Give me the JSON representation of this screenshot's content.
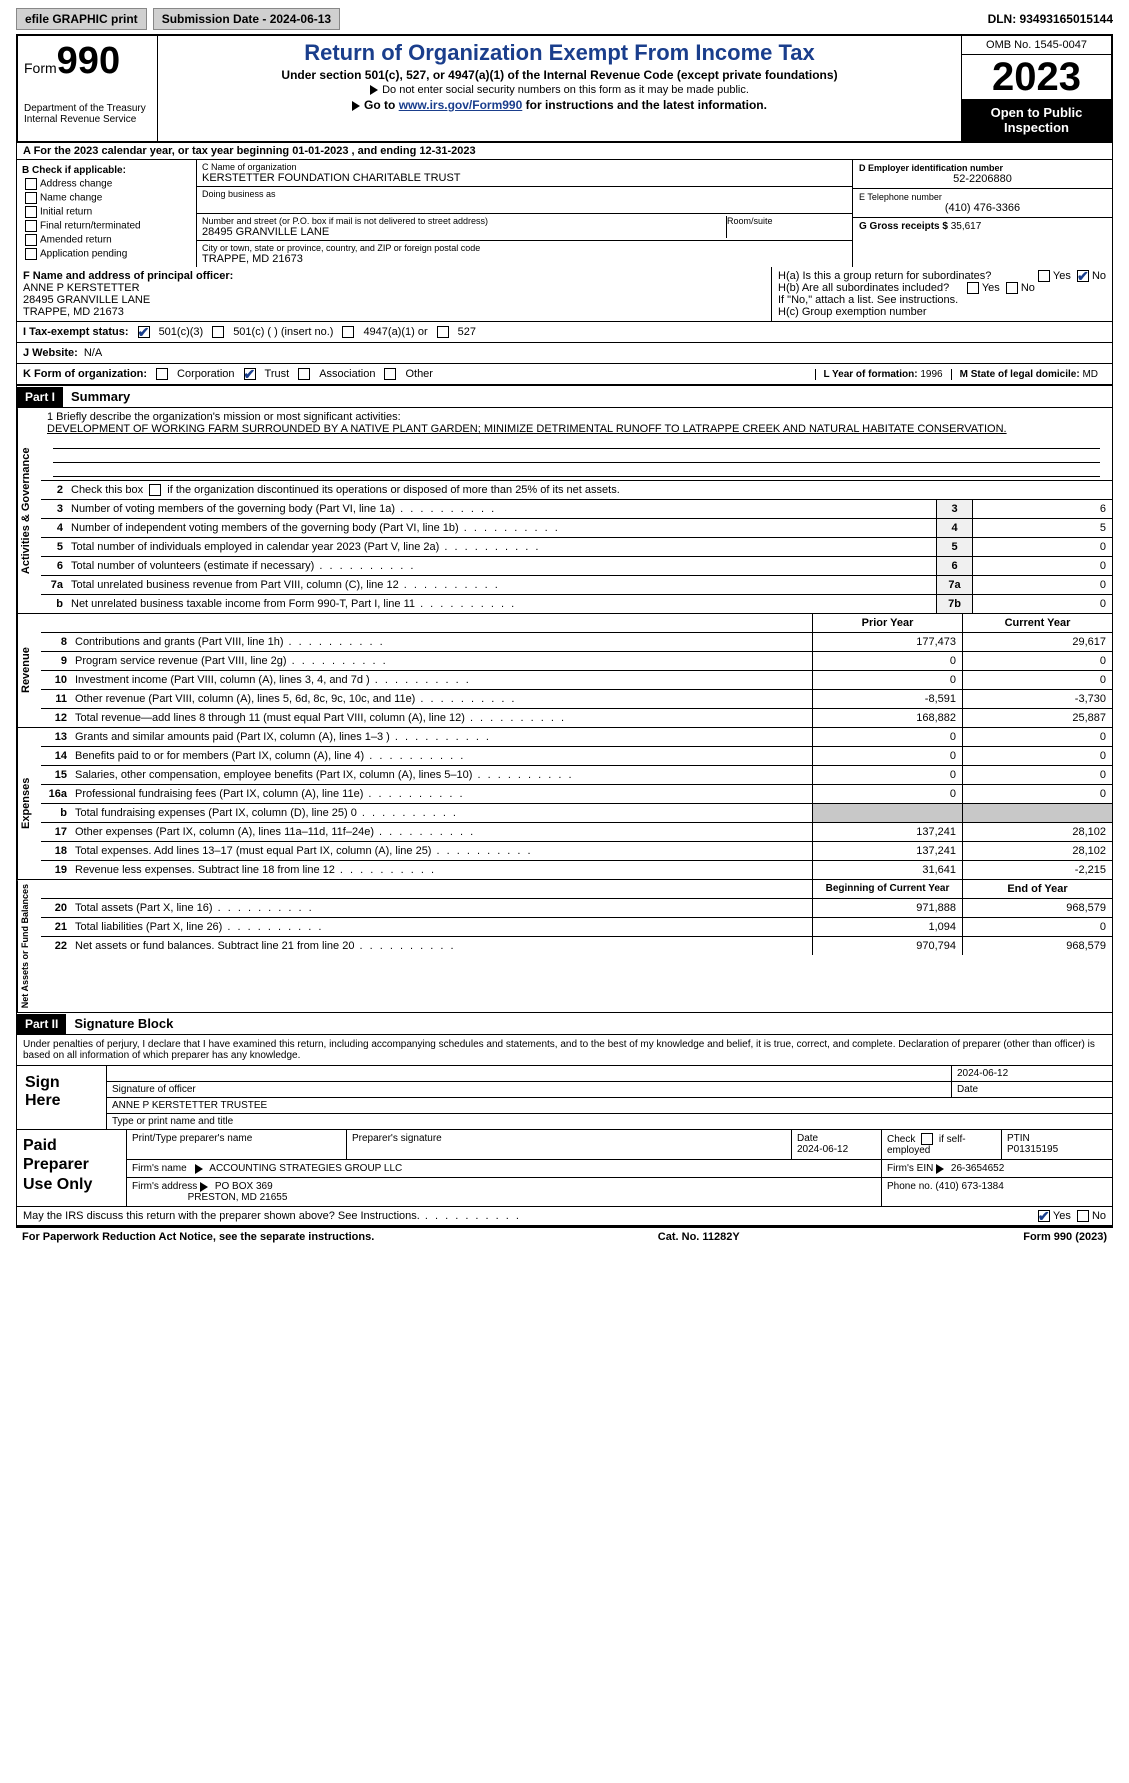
{
  "topbar": {
    "efile": "efile GRAPHIC print",
    "submission": "Submission Date - 2024-06-13",
    "dln": "DLN: 93493165015144"
  },
  "header": {
    "form_label": "Form",
    "form_num": "990",
    "title": "Return of Organization Exempt From Income Tax",
    "sub1": "Under section 501(c), 527, or 4947(a)(1) of the Internal Revenue Code (except private foundations)",
    "sub2": "Do not enter social security numbers on this form as it may be made public.",
    "sub3_pre": "Go to ",
    "sub3_link": "www.irs.gov/Form990",
    "sub3_post": " for instructions and the latest information.",
    "dept": "Department of the Treasury\nInternal Revenue Service",
    "omb": "OMB No. 1545-0047",
    "year": "2023",
    "openpub": "Open to Public Inspection"
  },
  "row_a": "A For the 2023 calendar year, or tax year beginning 01-01-2023    , and ending 12-31-2023",
  "col_b": {
    "label": "B Check if applicable:",
    "items": [
      "Address change",
      "Name change",
      "Initial return",
      "Final return/terminated",
      "Amended return",
      "Application pending"
    ]
  },
  "c": {
    "name_k": "C Name of organization",
    "name_v": "KERSTETTER FOUNDATION CHARITABLE TRUST",
    "dba_k": "Doing business as",
    "addr_k": "Number and street (or P.O. box if mail is not delivered to street address)",
    "addr_v": "28495 GRANVILLE LANE",
    "room_k": "Room/suite",
    "city_k": "City or town, state or province, country, and ZIP or foreign postal code",
    "city_v": "TRAPPE, MD  21673"
  },
  "d": {
    "ein_k": "D Employer identification number",
    "ein_v": "52-2206880",
    "tel_k": "E Telephone number",
    "tel_v": "(410) 476-3366",
    "gross_k": "G Gross receipts $",
    "gross_v": "35,617"
  },
  "f": {
    "k": "F  Name and address of principal officer:",
    "v": "ANNE P KERSTETTER\n28495 GRANVILLE LANE\nTRAPPE, MD  21673"
  },
  "h": {
    "a": "H(a)  Is this a group return for subordinates?",
    "b": "H(b)  Are all subordinates included?",
    "b2": "If \"No,\" attach a list. See instructions.",
    "c": "H(c)  Group exemption number",
    "yes": "Yes",
    "no": "No"
  },
  "i": {
    "k": "I   Tax-exempt status:",
    "o1": "501(c)(3)",
    "o2": "501(c) (  ) (insert no.)",
    "o3": "4947(a)(1) or",
    "o4": "527"
  },
  "j": {
    "k": "J   Website:",
    "v": "N/A"
  },
  "k": {
    "k": "K Form of organization:",
    "o1": "Corporation",
    "o2": "Trust",
    "o3": "Association",
    "o4": "Other",
    "l_k": "L Year of formation:",
    "l_v": "1996",
    "m_k": "M State of legal domicile:",
    "m_v": "MD"
  },
  "part1": {
    "tag": "Part I",
    "title": "Summary"
  },
  "mission": {
    "k": "1   Briefly describe the organization's mission or most significant activities:",
    "v": "DEVELOPMENT OF WORKING FARM SURROUNDED BY A NATIVE PLANT GARDEN; MINIMIZE DETRIMENTAL RUNOFF TO LATRAPPE CREEK AND NATURAL HABITATE CONSERVATION."
  },
  "gov_lines": [
    {
      "n": "2",
      "t": "Check this box   if the organization discontinued its operations or disposed of more than 25% of its net assets.",
      "box": "",
      "val": ""
    },
    {
      "n": "3",
      "t": "Number of voting members of the governing body (Part VI, line 1a)",
      "box": "3",
      "val": "6"
    },
    {
      "n": "4",
      "t": "Number of independent voting members of the governing body (Part VI, line 1b)",
      "box": "4",
      "val": "5"
    },
    {
      "n": "5",
      "t": "Total number of individuals employed in calendar year 2023 (Part V, line 2a)",
      "box": "5",
      "val": "0"
    },
    {
      "n": "6",
      "t": "Total number of volunteers (estimate if necessary)",
      "box": "6",
      "val": "0"
    },
    {
      "n": "7a",
      "t": "Total unrelated business revenue from Part VIII, column (C), line 12",
      "box": "7a",
      "val": "0"
    },
    {
      "n": "b",
      "t": "Net unrelated business taxable income from Form 990-T, Part I, line 11",
      "box": "7b",
      "val": "0"
    }
  ],
  "rev_hdr": {
    "c1": "Prior Year",
    "c2": "Current Year"
  },
  "rev_lines": [
    {
      "n": "8",
      "t": "Contributions and grants (Part VIII, line 1h)",
      "c1": "177,473",
      "c2": "29,617"
    },
    {
      "n": "9",
      "t": "Program service revenue (Part VIII, line 2g)",
      "c1": "0",
      "c2": "0"
    },
    {
      "n": "10",
      "t": "Investment income (Part VIII, column (A), lines 3, 4, and 7d )",
      "c1": "0",
      "c2": "0"
    },
    {
      "n": "11",
      "t": "Other revenue (Part VIII, column (A), lines 5, 6d, 8c, 9c, 10c, and 11e)",
      "c1": "-8,591",
      "c2": "-3,730"
    },
    {
      "n": "12",
      "t": "Total revenue—add lines 8 through 11 (must equal Part VIII, column (A), line 12)",
      "c1": "168,882",
      "c2": "25,887"
    }
  ],
  "exp_lines": [
    {
      "n": "13",
      "t": "Grants and similar amounts paid (Part IX, column (A), lines 1–3 )",
      "c1": "0",
      "c2": "0"
    },
    {
      "n": "14",
      "t": "Benefits paid to or for members (Part IX, column (A), line 4)",
      "c1": "0",
      "c2": "0"
    },
    {
      "n": "15",
      "t": "Salaries, other compensation, employee benefits (Part IX, column (A), lines 5–10)",
      "c1": "0",
      "c2": "0"
    },
    {
      "n": "16a",
      "t": "Professional fundraising fees (Part IX, column (A), line 11e)",
      "c1": "0",
      "c2": "0"
    },
    {
      "n": "b",
      "t": "Total fundraising expenses (Part IX, column (D), line 25) 0",
      "c1": "gray",
      "c2": "gray"
    },
    {
      "n": "17",
      "t": "Other expenses (Part IX, column (A), lines 11a–11d, 11f–24e)",
      "c1": "137,241",
      "c2": "28,102"
    },
    {
      "n": "18",
      "t": "Total expenses. Add lines 13–17 (must equal Part IX, column (A), line 25)",
      "c1": "137,241",
      "c2": "28,102"
    },
    {
      "n": "19",
      "t": "Revenue less expenses. Subtract line 18 from line 12",
      "c1": "31,641",
      "c2": "-2,215"
    }
  ],
  "na_hdr": {
    "c1": "Beginning of Current Year",
    "c2": "End of Year"
  },
  "na_lines": [
    {
      "n": "20",
      "t": "Total assets (Part X, line 16)",
      "c1": "971,888",
      "c2": "968,579"
    },
    {
      "n": "21",
      "t": "Total liabilities (Part X, line 26)",
      "c1": "1,094",
      "c2": "0"
    },
    {
      "n": "22",
      "t": "Net assets or fund balances. Subtract line 21 from line 20",
      "c1": "970,794",
      "c2": "968,579"
    }
  ],
  "vside": {
    "gov": "Activities & Governance",
    "rev": "Revenue",
    "exp": "Expenses",
    "na": "Net Assets or Fund Balances"
  },
  "part2": {
    "tag": "Part II",
    "title": "Signature Block"
  },
  "decl": "Under penalties of perjury, I declare that I have examined this return, including accompanying schedules and statements, and to the best of my knowledge and belief, it is true, correct, and complete. Declaration of preparer (other than officer) is based on all information of which preparer has any knowledge.",
  "sign": {
    "left": "Sign Here",
    "date": "2024-06-12",
    "sig_k": "Signature of officer",
    "name": "ANNE P KERSTETTER  TRUSTEE",
    "name_k": "Type or print name and title",
    "date_k": "Date"
  },
  "paid": {
    "left": "Paid Preparer Use Only",
    "h1": "Print/Type preparer's name",
    "h2": "Preparer's signature",
    "h3": "Date",
    "h3v": "2024-06-12",
    "h4": "Check        if self-employed",
    "h5": "PTIN",
    "ptin": "P01315195",
    "firm_k": "Firm's name",
    "firm_v": "ACCOUNTING STRATEGIES GROUP LLC",
    "ein_k": "Firm's EIN",
    "ein_v": "26-3654652",
    "addr_k": "Firm's address",
    "addr_v": "PO BOX 369",
    "addr_v2": "PRESTON, MD  21655",
    "phone_k": "Phone no.",
    "phone_v": "(410) 673-1384"
  },
  "discuss": {
    "t": "May the IRS discuss this return with the preparer shown above? See Instructions.",
    "yes": "Yes",
    "no": "No"
  },
  "bottom": {
    "l": "For Paperwork Reduction Act Notice, see the separate instructions.",
    "m": "Cat. No. 11282Y",
    "r": "Form 990 (2023)"
  }
}
